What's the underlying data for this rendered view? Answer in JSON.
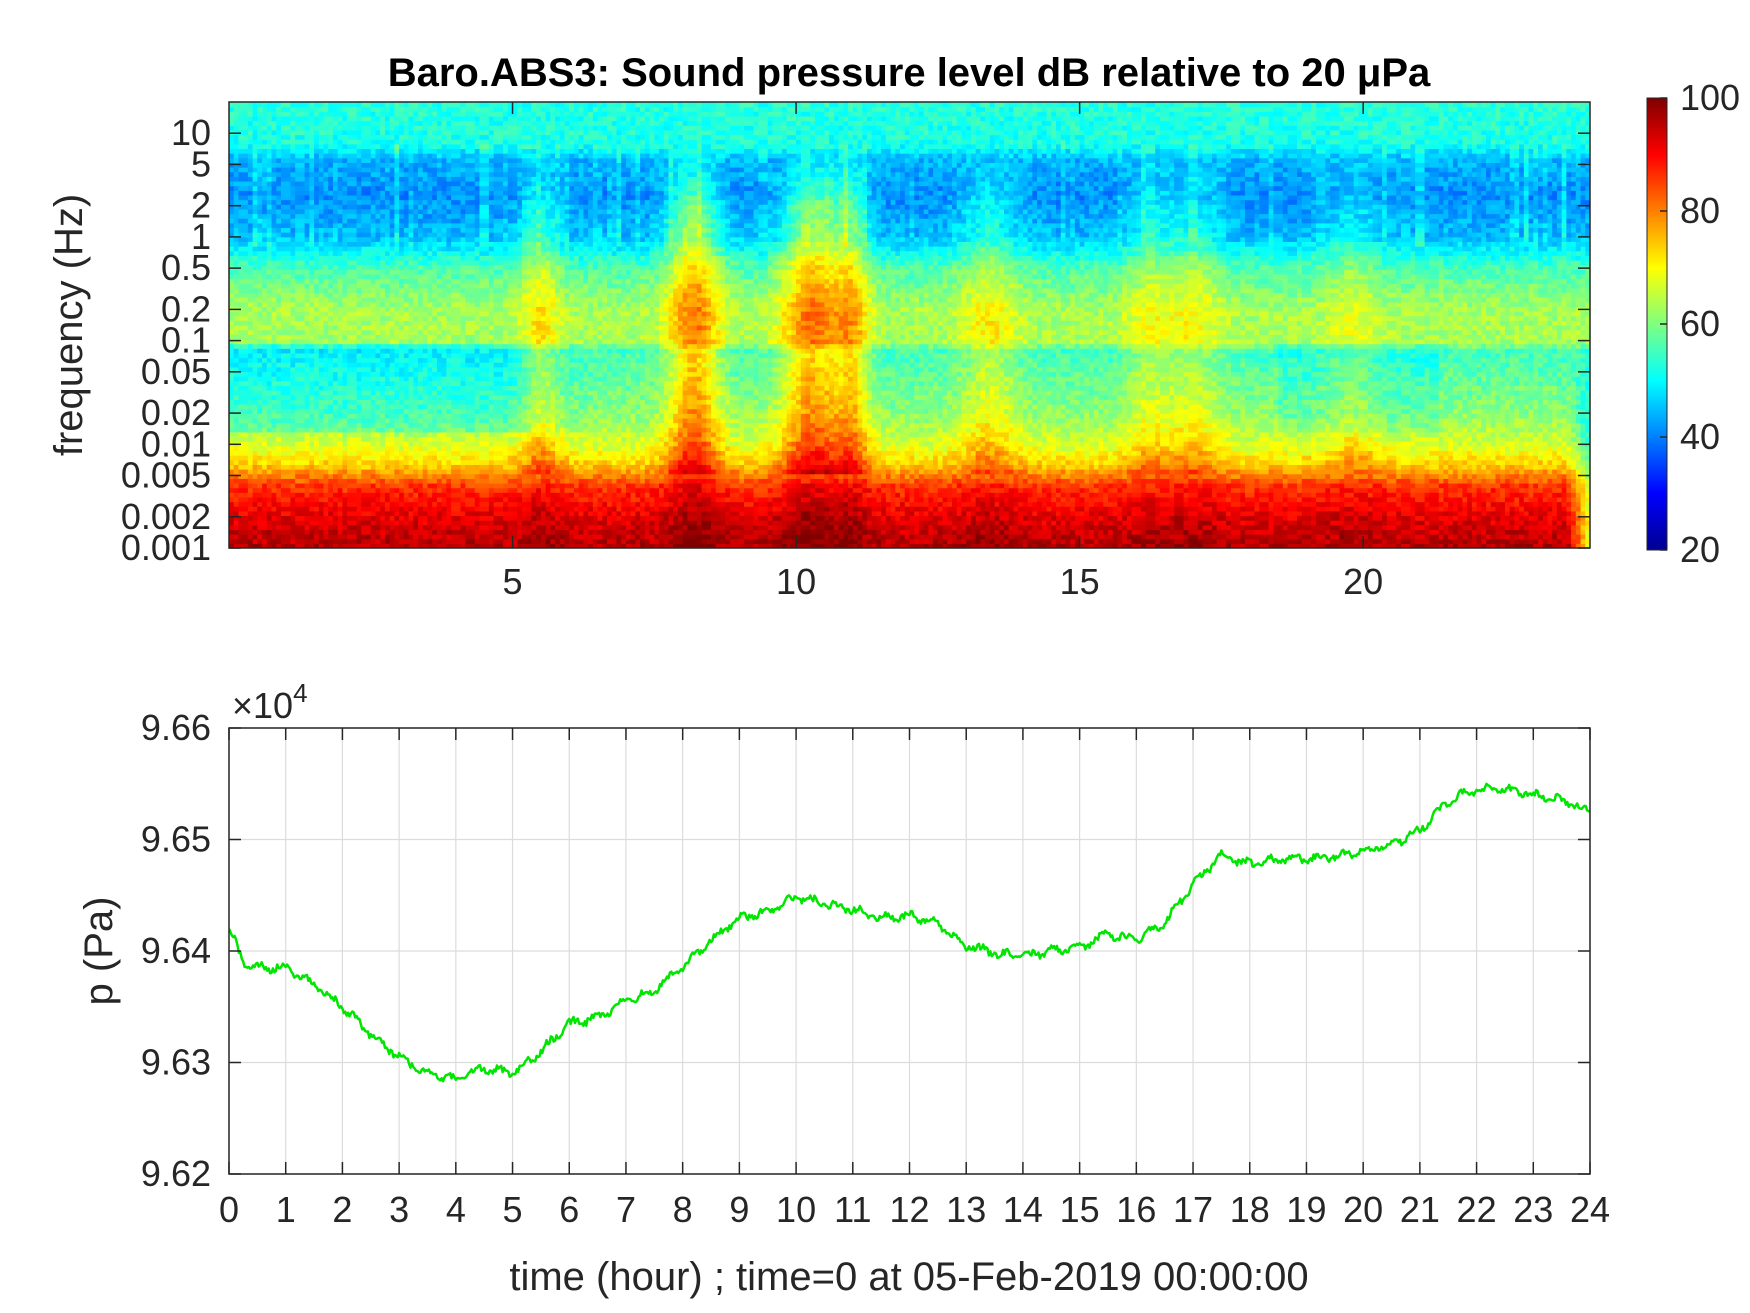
{
  "chart_data": [
    {
      "type": "heatmap",
      "title": "Baro.ABS3: Sound pressure level dB relative to 20 μPa",
      "xlabel": "",
      "ylabel": "frequency (Hz)",
      "xlim": [
        0,
        24
      ],
      "ylim": [
        0.001,
        20
      ],
      "y_scale": "log",
      "x_ticks": [
        "5",
        "10",
        "15",
        "20"
      ],
      "y_ticks": [
        "0.001",
        "0.002",
        "0.005",
        "0.01",
        "0.02",
        "0.05",
        "0.1",
        "0.2",
        "0.5",
        "1",
        "2",
        "5",
        "10"
      ],
      "colorbar": {
        "range": [
          20,
          100
        ],
        "ticks": [
          "20",
          "40",
          "60",
          "80",
          "100"
        ],
        "colormap": "jet"
      },
      "events_hours": [
        8.2,
        10.3,
        11.0,
        5.5,
        13.4,
        17.0
      ],
      "levels_db_by_band": {
        "10": 52,
        "5": 44,
        "2": 41,
        "1": 44,
        "0.5": 57,
        "0.2": 63,
        "0.1": 52,
        "0.05": 55,
        "0.02": 62,
        "0.01": 68,
        "0.005": 84,
        "0.002": 92,
        "0.001": 96
      }
    },
    {
      "type": "line",
      "title": "",
      "xlabel": "time (hour) ; time=0 at 05-Feb-2019 00:00:00",
      "ylabel": "p (Pa)",
      "y_multiplier": "×10",
      "y_exponent": "4",
      "xlim": [
        0,
        24
      ],
      "ylim": [
        9.62,
        9.66
      ],
      "grid": true,
      "x_ticks": [
        "0",
        "1",
        "2",
        "3",
        "4",
        "5",
        "6",
        "7",
        "8",
        "9",
        "10",
        "11",
        "12",
        "13",
        "14",
        "15",
        "16",
        "17",
        "18",
        "19",
        "20",
        "21",
        "22",
        "23",
        "24"
      ],
      "y_ticks": [
        "9.62",
        "9.63",
        "9.64",
        "9.65",
        "9.66"
      ],
      "series": [
        {
          "color": "#00e600",
          "x": [
            0,
            0.25,
            0.5,
            1,
            1.5,
            2,
            2.5,
            3,
            3.5,
            4,
            4.5,
            5,
            5.5,
            6,
            6.5,
            7,
            7.5,
            8,
            8.5,
            9,
            9.5,
            10,
            10.5,
            11,
            11.5,
            12,
            12.5,
            13,
            13.5,
            14,
            14.5,
            15,
            15.5,
            16,
            16.5,
            17,
            17.5,
            18,
            18.5,
            19,
            19.5,
            20,
            20.5,
            21,
            21.5,
            22,
            22.5,
            23,
            23.5,
            24
          ],
          "values": [
            9.642,
            9.639,
            9.6385,
            9.6385,
            9.637,
            9.635,
            9.6325,
            9.6305,
            9.629,
            9.6285,
            9.6295,
            9.629,
            9.631,
            9.6335,
            9.634,
            9.6355,
            9.6365,
            9.6385,
            9.641,
            9.643,
            9.6435,
            9.6448,
            9.6443,
            9.6437,
            9.643,
            9.6432,
            9.6425,
            9.6405,
            9.6398,
            9.6395,
            9.64,
            9.6403,
            9.6415,
            9.641,
            9.6425,
            9.646,
            9.6485,
            9.6478,
            9.6482,
            9.6483,
            9.6485,
            9.649,
            9.6495,
            9.6508,
            9.6535,
            9.6545,
            9.6545,
            9.654,
            9.6535,
            9.6525
          ]
        }
      ]
    }
  ]
}
